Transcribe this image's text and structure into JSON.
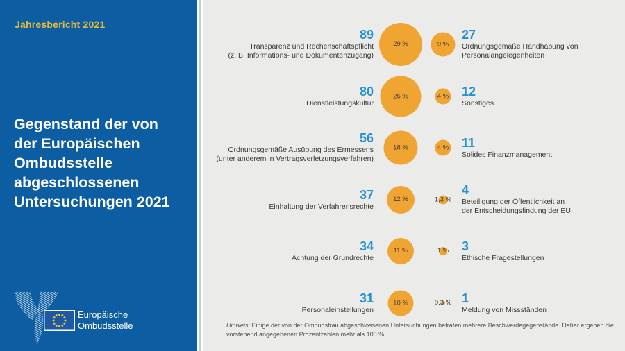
{
  "sidebar": {
    "report_label": "Jahresbericht 2021",
    "title": "Gegenstand der von\nder Europäischen\nOmbudsstelle\nabgeschlossenen\nUntersuchungen 2021",
    "logo": {
      "org_line1": "Europäische",
      "org_line2": "Ombudsstelle"
    }
  },
  "chart": {
    "rows": [
      {
        "left": {
          "value": "89",
          "label": "Transparenz und Rechenschaftspflicht\n(z. B. Informations- und Dokumentenzugang)",
          "pct_value": 29,
          "pct_label": "29 %"
        },
        "right": {
          "value": "27",
          "label": "Ordnungsgemäße Handhabung von\nPersonalangelegenheiten",
          "pct_value": 9,
          "pct_label": "9 %"
        }
      },
      {
        "left": {
          "value": "80",
          "label": "Dienstleistungskultur",
          "pct_value": 26,
          "pct_label": "26 %"
        },
        "right": {
          "value": "12",
          "label": "Sonstiges",
          "pct_value": 4,
          "pct_label": "4 %"
        }
      },
      {
        "left": {
          "value": "56",
          "label": "Ordnungsgemäße Ausübung des Ermessens\n(unter anderem in Vertragsverletzungsverfahren)",
          "pct_value": 18,
          "pct_label": "18 %"
        },
        "right": {
          "value": "11",
          "label": "Solides Finanzmanagement",
          "pct_value": 4,
          "pct_label": "4 %"
        }
      },
      {
        "left": {
          "value": "37",
          "label": "Einhaltung der Verfahrensrechte",
          "pct_value": 12,
          "pct_label": "12 %"
        },
        "right": {
          "value": "4",
          "label": "Beteiligung der Öffentlichkeit an\nder Entscheidungsfindung der EU",
          "pct_value": 1.3,
          "pct_label": "1,3 %"
        }
      },
      {
        "left": {
          "value": "34",
          "label": "Achtung der Grundrechte",
          "pct_value": 11,
          "pct_label": "11 %"
        },
        "right": {
          "value": "3",
          "label": "Ethische Fragestellungen",
          "pct_value": 1,
          "pct_label": "1 %"
        }
      },
      {
        "left": {
          "value": "31",
          "label": "Personaleinstellungen",
          "pct_value": 10,
          "pct_label": "10 %"
        },
        "right": {
          "value": "1",
          "label": "Meldung von Missständen",
          "pct_value": 0.3,
          "pct_label": "0,3 %"
        }
      }
    ],
    "note_prefix": "Hinweis",
    "note_text": ": Einige der von der Ombudsfrau abgeschlossenen Untersuchungen betrafen mehrere Beschwerdegegenstände. Daher ergeben die vorstehend angegebenen Prozentzahlen mehr als 100 %."
  },
  "colors": {
    "panel_blue": "#0c5da1",
    "divider_blue": "#b9cfe3",
    "background_gray": "#ebebea",
    "bubble_orange": "#f0a432",
    "number_blue": "#2792d0",
    "accent_yellow": "#e3ba3e"
  },
  "chart_data": {
    "type": "bubble",
    "title": "Gegenstand der von der Europäischen Ombudsstelle abgeschlossenen Untersuchungen 2021",
    "subtitle": "Jahresbericht 2021",
    "legend_position": "none",
    "grid": false,
    "items": [
      {
        "label": "Transparenz und Rechenschaftspflicht (z. B. Informations- und Dokumentenzugang)",
        "count": 89,
        "percent": 29,
        "percent_label": "29 %"
      },
      {
        "label": "Dienstleistungskultur",
        "count": 80,
        "percent": 26,
        "percent_label": "26 %"
      },
      {
        "label": "Ordnungsgemäße Ausübung des Ermessens (unter anderem in Vertragsverletzungsverfahren)",
        "count": 56,
        "percent": 18,
        "percent_label": "18 %"
      },
      {
        "label": "Einhaltung der Verfahrensrechte",
        "count": 37,
        "percent": 12,
        "percent_label": "12 %"
      },
      {
        "label": "Achtung der Grundrechte",
        "count": 34,
        "percent": 11,
        "percent_label": "11 %"
      },
      {
        "label": "Personaleinstellungen",
        "count": 31,
        "percent": 10,
        "percent_label": "10 %"
      },
      {
        "label": "Ordnungsgemäße Handhabung von Personalangelegenheiten",
        "count": 27,
        "percent": 9,
        "percent_label": "9 %"
      },
      {
        "label": "Sonstiges",
        "count": 12,
        "percent": 4,
        "percent_label": "4 %"
      },
      {
        "label": "Solides Finanzmanagement",
        "count": 11,
        "percent": 4,
        "percent_label": "4 %"
      },
      {
        "label": "Beteiligung der Öffentlichkeit an der Entscheidungsfindung der EU",
        "count": 4,
        "percent": 1.3,
        "percent_label": "1,3 %"
      },
      {
        "label": "Ethische Fragestellungen",
        "count": 3,
        "percent": 1,
        "percent_label": "1 %"
      },
      {
        "label": "Meldung von Missständen",
        "count": 1,
        "percent": 0.3,
        "percent_label": "0,3 %"
      }
    ],
    "note": "Hinweis: Einige der von der Ombudsfrau abgeschlossenen Untersuchungen betrafen mehrere Beschwerdegegenstände. Daher ergeben die vorstehend angegebenen Prozentzahlen mehr als 100 %."
  }
}
